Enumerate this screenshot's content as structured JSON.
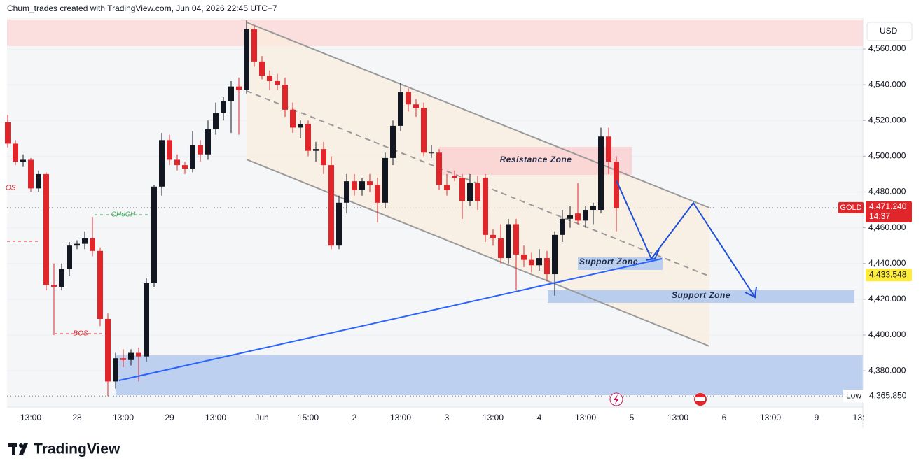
{
  "header": {
    "credit": "Chum_trades created with TradingView.com, Jun 04, 2026 22:45 UTC+7"
  },
  "footer": {
    "brand": "TradingView"
  },
  "annotations": {
    "resistance": "Resistance Zone",
    "support_1": "Support Zone",
    "support_2": "Support Zone",
    "choch": "CHoCH",
    "bos": "BOS",
    "bos_left": "OS"
  },
  "chart_data": {
    "type": "candlestick",
    "symbol": "GOLD",
    "currency": "USD",
    "up_color": "#131722",
    "down_color": "#e0252b",
    "open": [
      4519,
      4507,
      4497,
      4498,
      4482,
      4490,
      4428,
      4427,
      4437,
      4450,
      4451,
      4454,
      4447,
      4409,
      4374,
      4387,
      4386,
      4390,
      4388,
      4429,
      4483,
      4509,
      4498,
      4495,
      4493,
      4506,
      4501,
      4515,
      4524,
      4531,
      4539,
      4537,
      4571,
      4553,
      4545,
      4542,
      4540,
      4526,
      4516,
      4518,
      4503,
      4504,
      4495,
      4450,
      4474,
      4486,
      4481,
      4486,
      4484,
      4474,
      4499,
      4517,
      4536,
      4529,
      4527,
      4502,
      4502,
      4484,
      4489,
      4488,
      4475,
      4485,
      4488,
      4456,
      4454,
      4443,
      4462,
      4445,
      4442,
      4439,
      4443,
      4434,
      4456,
      4465,
      4468,
      4464,
      4470,
      4470,
      4511,
      4497
    ],
    "high": [
      4523,
      4509,
      4501,
      4499,
      4492,
      4491,
      4440,
      4440,
      4452,
      4453,
      4458,
      4466,
      4449,
      4412,
      4390,
      4392,
      4392,
      4393,
      4432,
      4484,
      4513,
      4512,
      4501,
      4497,
      4514,
      4509,
      4520,
      4530,
      4533,
      4542,
      4544,
      4576,
      4573,
      4556,
      4548,
      4546,
      4544,
      4530,
      4520,
      4520,
      4508,
      4508,
      4500,
      4478,
      4490,
      4490,
      4488,
      4490,
      4488,
      4502,
      4520,
      4541,
      4538,
      4532,
      4530,
      4506,
      4504,
      4490,
      4492,
      4490,
      4490,
      4489,
      4490,
      4459,
      4462,
      4465,
      4465,
      4450,
      4446,
      4448,
      4447,
      4458,
      4470,
      4472,
      4485,
      4472,
      4474,
      4516,
      4516,
      4500
    ],
    "low": [
      4505,
      4495,
      4494,
      4480,
      4480,
      4425,
      4400,
      4425,
      4433,
      4448,
      4448,
      4444,
      4405,
      4365.85,
      4370,
      4382,
      4383,
      4374,
      4385,
      4427,
      4478,
      4495,
      4492,
      4490,
      4491,
      4497,
      4498,
      4512,
      4520,
      4513,
      4512,
      4535,
      4550,
      4543,
      4537,
      4537,
      4522,
      4513,
      4510,
      4500,
      4497,
      4490,
      4448,
      4448,
      4468,
      4478,
      4478,
      4480,
      4463,
      4471,
      4495,
      4514,
      4525,
      4522,
      4500,
      4499,
      4481,
      4478,
      4486,
      4465,
      4472,
      4470,
      4452,
      4450,
      4440,
      4440,
      4425,
      4438,
      4435,
      4436,
      4430,
      4422,
      4452,
      4460,
      4462,
      4460,
      4462,
      4468,
      4490,
      4458
    ],
    "close": [
      4507,
      4497,
      4498,
      4482,
      4490,
      4428,
      4427,
      4437,
      4450,
      4451,
      4454,
      4447,
      4409,
      4374,
      4387,
      4386,
      4390,
      4388,
      4429,
      4483,
      4509,
      4498,
      4495,
      4493,
      4506,
      4501,
      4515,
      4524,
      4531,
      4539,
      4537,
      4571,
      4553,
      4545,
      4542,
      4540,
      4526,
      4516,
      4518,
      4503,
      4504,
      4495,
      4450,
      4474,
      4486,
      4481,
      4486,
      4484,
      4474,
      4499,
      4517,
      4536,
      4529,
      4527,
      4502,
      4502,
      4484,
      4481,
      4488,
      4475,
      4485,
      4475,
      4456,
      4454,
      4443,
      4462,
      4445,
      4442,
      4439,
      4443,
      4434,
      4456,
      4465,
      4467,
      4464,
      4470,
      4472,
      4511,
      4497,
      4471
    ],
    "ylim": [
      4359.7,
      4577.2
    ],
    "yticks": [
      {
        "value": 4380,
        "label": "4,380.000"
      },
      {
        "value": 4400,
        "label": "4,400.000"
      },
      {
        "value": 4420,
        "label": "4,420.000"
      },
      {
        "value": 4440,
        "label": "4,440.000"
      },
      {
        "value": 4460,
        "label": "4,460.000"
      },
      {
        "value": 4480,
        "label": "4,480.000"
      },
      {
        "value": 4500,
        "label": "4,500.000"
      },
      {
        "value": 4520,
        "label": "4,520.000"
      },
      {
        "value": 4540,
        "label": "4,540.000"
      },
      {
        "value": 4560,
        "label": "4,560.000"
      }
    ],
    "xticks": [
      "13:00",
      "28",
      "13:00",
      "29",
      "13:00",
      "Jun",
      "15:00",
      "2",
      "13:00",
      "3",
      "13:00",
      "4",
      "13:00",
      "5",
      "13:00",
      "6",
      "13:00",
      "9",
      "13:"
    ],
    "last_price": {
      "value": 4471.24,
      "label": "4,471.240",
      "countdown": "14:37"
    },
    "crosshair_price": {
      "value": 4433.548,
      "label": "4,433.548"
    },
    "low_marker": {
      "name": "Low",
      "value": 4365.85,
      "label": "4,365.850"
    }
  }
}
